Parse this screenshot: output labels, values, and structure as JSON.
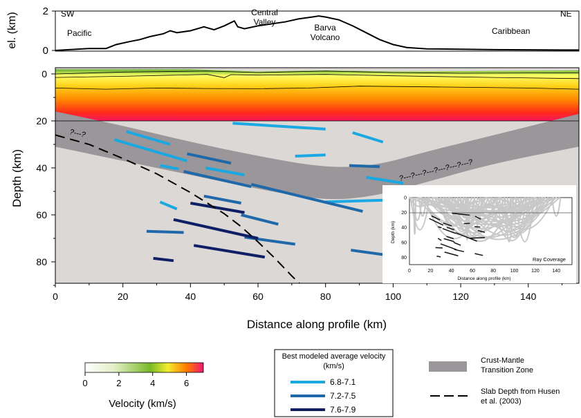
{
  "chart_data": [
    {
      "type": "line",
      "panel": "elevation",
      "ylabel": "el. (km)",
      "ylim": [
        0,
        2
      ],
      "yticks": [
        "2",
        "0"
      ],
      "xlim": [
        0,
        155
      ],
      "labels": [
        "SW",
        "NE",
        "Pacific",
        "Central Valley",
        "Barva Volcano",
        "Caribbean"
      ],
      "x": [
        0,
        5,
        10,
        15,
        18,
        22,
        25,
        28,
        32,
        34,
        36,
        40,
        44,
        47,
        50,
        53,
        54,
        56,
        60,
        64,
        68,
        72,
        76,
        78,
        80,
        84,
        88,
        92,
        96,
        100,
        104,
        110,
        120,
        130,
        140,
        150,
        155
      ],
      "y": [
        0.0,
        0.05,
        0.1,
        0.1,
        0.3,
        0.45,
        0.55,
        0.7,
        0.85,
        1.0,
        0.9,
        1.0,
        1.2,
        1.05,
        1.25,
        1.5,
        1.2,
        1.1,
        1.25,
        1.35,
        1.45,
        1.6,
        1.7,
        1.75,
        1.7,
        1.55,
        1.25,
        0.9,
        0.55,
        0.3,
        0.15,
        0.08,
        0.06,
        0.04,
        0.03,
        0.02,
        0.02
      ]
    },
    {
      "type": "line",
      "panel": "velocity-section",
      "xlabel": "Distance along profile (km)",
      "ylabel": "Depth (km)",
      "xlim": [
        0,
        155
      ],
      "ylim": [
        90,
        -3
      ],
      "xticks": [
        "0",
        "20",
        "40",
        "60",
        "80",
        "100",
        "120",
        "140"
      ],
      "yticks": [
        "0",
        "20",
        "40",
        "60",
        "80"
      ],
      "series": [
        {
          "name": "6.8-7.1",
          "color": "#1aa8e2",
          "segments": [
            [
              [
                52.5,
                21
              ],
              [
                80,
                23.5
              ]
            ],
            [
              [
                21,
                24.5
              ],
              [
                34,
                30
              ]
            ],
            [
              [
                17.5,
                28
              ],
              [
                39,
                37
              ]
            ],
            [
              [
                31,
                39
              ],
              [
                36.5,
                40.5
              ]
            ],
            [
              [
                44.5,
                40
              ],
              [
                56,
                43
              ]
            ],
            [
              [
                71,
                35
              ],
              [
                80,
                34.5
              ]
            ],
            [
              [
                88,
                25
              ],
              [
                97,
                29
              ]
            ],
            [
              [
                92,
                44
              ],
              [
                103,
                46.5
              ]
            ],
            [
              [
                31,
                54.5
              ],
              [
                36,
                57.5
              ]
            ],
            [
              [
                80,
                54.5
              ],
              [
                103,
                53.5
              ]
            ]
          ]
        },
        {
          "name": "7.2-7.5",
          "color": "#1f68a9",
          "segments": [
            [
              [
                39,
                34
              ],
              [
                52,
                38
              ]
            ],
            [
              [
                38,
                41.5
              ],
              [
                58,
                48
              ]
            ],
            [
              [
                44,
                52
              ],
              [
                55,
                55
              ]
            ],
            [
              [
                58,
                47
              ],
              [
                91,
                58.5
              ]
            ],
            [
              [
                55,
                60
              ],
              [
                66,
                64
              ]
            ],
            [
              [
                87,
                39
              ],
              [
                96,
                39.5
              ]
            ],
            [
              [
                56,
                69.5
              ],
              [
                71,
                72.5
              ]
            ],
            [
              [
                87.5,
                75
              ],
              [
                100,
                77.5
              ]
            ],
            [
              [
                27,
                67
              ],
              [
                38,
                67.5
              ]
            ]
          ]
        },
        {
          "name": "7.6-7.9",
          "color": "#0f1f66",
          "segments": [
            [
              [
                40,
                55
              ],
              [
                56,
                59
              ]
            ],
            [
              [
                35,
                62
              ],
              [
                60,
                70
              ]
            ],
            [
              [
                41,
                73
              ],
              [
                62,
                78
              ]
            ],
            [
              [
                29,
                78.5
              ],
              [
                35,
                79.5
              ]
            ]
          ]
        }
      ],
      "slab_depth": {
        "name": "Slab Depth from Husen et al. (2003)",
        "x": [
          0,
          10,
          20,
          30,
          40,
          50,
          55,
          60,
          65,
          70,
          75,
          80,
          82
        ],
        "y": [
          26,
          30,
          36,
          42.5,
          50.5,
          59.5,
          65,
          71.5,
          78.5,
          86,
          93,
          100,
          103
        ]
      },
      "transition_zone": {
        "name": "Crust-Mantle Transition Zone",
        "upper": [
          [
            0,
            16
          ],
          [
            20,
            22
          ],
          [
            40,
            29
          ],
          [
            60,
            35
          ],
          [
            80,
            40
          ],
          [
            95,
            39
          ],
          [
            110,
            33
          ],
          [
            130,
            26
          ],
          [
            155,
            17
          ]
        ],
        "lower": [
          [
            0,
            31
          ],
          [
            20,
            37
          ],
          [
            40,
            43
          ],
          [
            60,
            49
          ],
          [
            80,
            54
          ],
          [
            95,
            52
          ],
          [
            110,
            46
          ],
          [
            130,
            38
          ],
          [
            155,
            31
          ]
        ]
      },
      "annotations": [
        "?---?",
        "?---?---?---?---?---?---?"
      ],
      "colorbar": {
        "label": "Velocity (km/s)",
        "ticks": [
          "0",
          "2",
          "4",
          "6"
        ],
        "range": [
          0,
          7
        ]
      }
    },
    {
      "type": "line",
      "panel": "inset-ray-coverage",
      "title": "Ray Coverage",
      "xlabel": "Distance along profile (km)",
      "ylabel": "Depth (km)",
      "xticks": [
        "0",
        "20",
        "40",
        "60",
        "80",
        "100",
        "120",
        "140"
      ],
      "yticks": [
        "0",
        "20",
        "40",
        "60",
        "80"
      ]
    }
  ],
  "legend": {
    "velocity_title": "Best modeled average velocity (km/s)",
    "entries": [
      {
        "label": "6.8-7.1",
        "color": "#1aa8e2"
      },
      {
        "label": "7.2-7.5",
        "color": "#1f68a9"
      },
      {
        "label": "7.6-7.9",
        "color": "#0f1f66"
      }
    ],
    "transition_label": "Crust-Mantle Transition Zone",
    "slab_label": "Slab Depth from Husen et al. (2003)"
  }
}
